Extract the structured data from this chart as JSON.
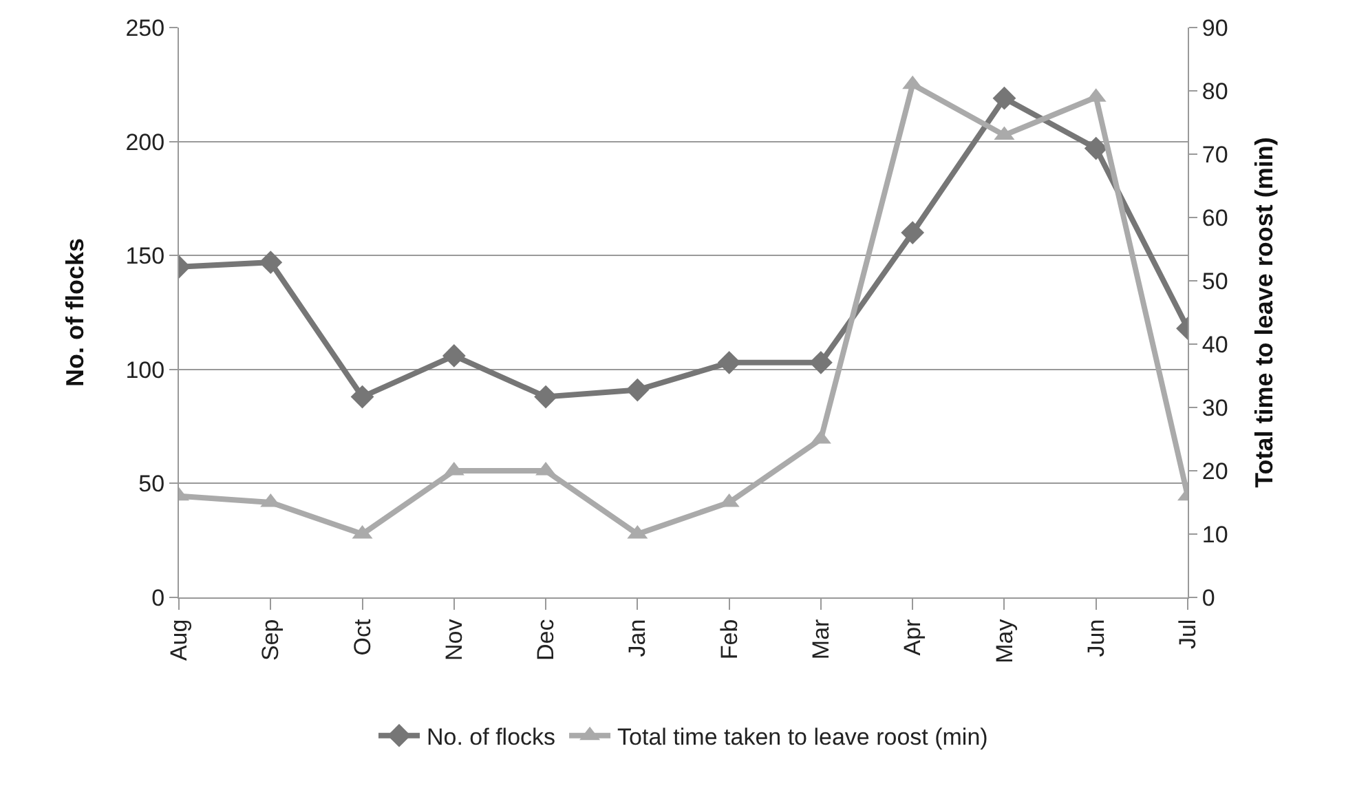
{
  "chart_data": {
    "type": "line",
    "ylabel": "No. of flocks",
    "y2label": "Total time to leave roost (min)",
    "categories": [
      "Aug",
      "Sep",
      "Oct",
      "Nov",
      "Dec",
      "Jan",
      "Feb",
      "Mar",
      "Apr",
      "May",
      "Jun",
      "Jul"
    ],
    "series": [
      {
        "name": "No. of flocks",
        "color": "#767676",
        "marker": "diamond",
        "values": [
          145,
          147,
          88,
          106,
          88,
          91,
          103,
          103,
          160,
          219,
          197,
          118
        ]
      },
      {
        "name": "Total time taken to leave roost (min)",
        "color": "#aaaaaa",
        "marker": "triangle",
        "axis": "y2",
        "values": [
          16,
          15,
          10,
          20,
          20,
          10,
          15,
          25,
          81,
          73,
          79,
          16
        ]
      }
    ],
    "ylim": [
      0,
      250
    ],
    "yticks": [
      0,
      50,
      100,
      150,
      200,
      250
    ],
    "y2lim": [
      0,
      90
    ],
    "y2ticks": [
      0,
      10,
      20,
      30,
      40,
      50,
      60,
      70,
      80,
      90
    ],
    "grid": "y",
    "legend": "bottom",
    "line_style": "solid"
  }
}
